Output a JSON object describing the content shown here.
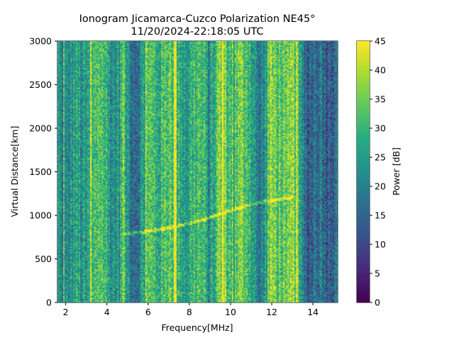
{
  "chart_data": {
    "type": "heatmap",
    "title": "Ionogram Jicamarca-Cuzco Polarization NE45°",
    "subtitle": "11/20/2024-22:18:05 UTC",
    "xlabel": "Frequency[MHz]",
    "ylabel": "Virtual Distance[km]",
    "xlim": [
      1.6,
      15.2
    ],
    "ylim": [
      0,
      3000
    ],
    "xticks": [
      2,
      4,
      6,
      8,
      10,
      12,
      14
    ],
    "yticks": [
      0,
      500,
      1000,
      1500,
      2000,
      2500,
      3000
    ],
    "colorbar": {
      "label": "Power [dB]",
      "range": [
        0,
        45
      ],
      "ticks": [
        0,
        5,
        10,
        15,
        20,
        25,
        30,
        35,
        40,
        45
      ],
      "colormap": "viridis"
    },
    "echo_trace": {
      "description": "oblique echo trace",
      "points": [
        {
          "freq": 4.8,
          "dist": 790
        },
        {
          "freq": 6.0,
          "dist": 820
        },
        {
          "freq": 7.0,
          "dist": 860
        },
        {
          "freq": 8.0,
          "dist": 910
        },
        {
          "freq": 9.0,
          "dist": 980
        },
        {
          "freq": 10.0,
          "dist": 1060
        },
        {
          "freq": 11.0,
          "dist": 1130
        },
        {
          "freq": 12.0,
          "dist": 1175
        },
        {
          "freq": 13.0,
          "dist": 1210
        }
      ]
    },
    "interference_lines_mhz": [
      1.9,
      3.2,
      4.8,
      5.9,
      7.3,
      9.6,
      10.1,
      13.2
    ]
  }
}
